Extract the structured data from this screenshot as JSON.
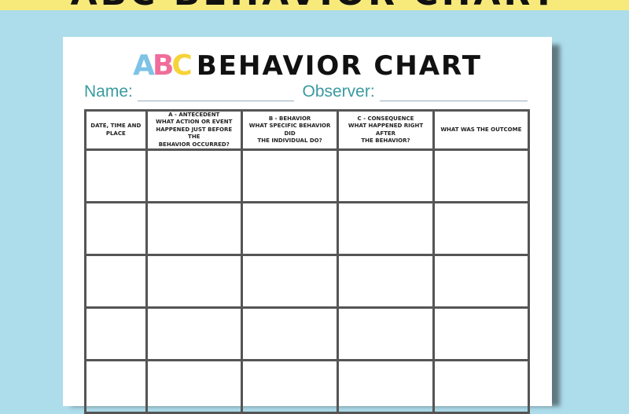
{
  "banner": {
    "text": "ABC BEHAVIOR CHART"
  },
  "title": {
    "logo": "ABC",
    "text": "BEHAVIOR CHART"
  },
  "fields": {
    "name_label": "Name:",
    "observer_label": "Observer:"
  },
  "colors": {
    "background": "#addcea",
    "banner": "#f8ea7a",
    "label": "#3a9aa0"
  },
  "table": {
    "columns": [
      "Date, time and place",
      "A - Antecedent\nWhat action or event happened just before the behavior occurred?",
      "B - Behavior\nWhat specific behavior did the individual do?",
      "C - Consequence\nWhat happened right after the behavior?",
      "What was the outcome"
    ],
    "columns_display": [
      [
        "Date, time and place"
      ],
      [
        "A - Antecedent",
        "What action or event",
        "happened just before the",
        "behavior occurred?"
      ],
      [
        "B - Behavior",
        "What specific behavior did",
        "the individual do?"
      ],
      [
        "C - Consequence",
        "What happened right after",
        "the behavior?"
      ],
      [
        "What was the outcome"
      ]
    ],
    "empty_rows": 5
  }
}
